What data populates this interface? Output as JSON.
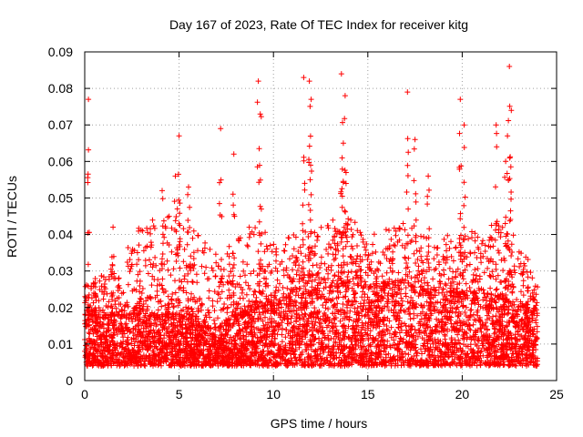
{
  "chart_data": {
    "type": "scatter",
    "title": "Day 167 of 2023, Rate Of TEC Index for receiver kitg",
    "xlabel": "GPS time / hours",
    "ylabel": "ROTI / TECUs",
    "xlim": [
      0,
      25
    ],
    "ylim": [
      0,
      0.09
    ],
    "grid": true,
    "marker": "+",
    "color": "#ff0000",
    "x_ticks": [
      0,
      5,
      10,
      15,
      20,
      25
    ],
    "x_tick_labels": [
      "0",
      "5",
      "10",
      "15",
      "20",
      "25"
    ],
    "y_ticks": [
      0,
      0.01,
      0.02,
      0.03,
      0.04,
      0.05,
      0.06,
      0.07,
      0.08,
      0.09
    ],
    "y_tick_labels": [
      "0",
      "0.01",
      "0.02",
      "0.03",
      "0.04",
      "0.05",
      "0.06",
      "0.07",
      "0.08",
      "0.09"
    ],
    "data_x_range": [
      0,
      24
    ],
    "envelope": [
      {
        "x": 0.0,
        "upper": 0.026,
        "dense_upper": 0.018
      },
      {
        "x": 1.0,
        "upper": 0.03,
        "dense_upper": 0.017
      },
      {
        "x": 2.0,
        "upper": 0.032,
        "dense_upper": 0.019
      },
      {
        "x": 2.8,
        "upper": 0.045,
        "dense_upper": 0.02
      },
      {
        "x": 4.0,
        "upper": 0.045,
        "dense_upper": 0.018
      },
      {
        "x": 5.0,
        "upper": 0.05,
        "dense_upper": 0.018
      },
      {
        "x": 6.0,
        "upper": 0.04,
        "dense_upper": 0.016
      },
      {
        "x": 7.0,
        "upper": 0.035,
        "dense_upper": 0.014
      },
      {
        "x": 8.0,
        "upper": 0.04,
        "dense_upper": 0.018
      },
      {
        "x": 9.0,
        "upper": 0.045,
        "dense_upper": 0.02
      },
      {
        "x": 10.0,
        "upper": 0.038,
        "dense_upper": 0.021
      },
      {
        "x": 11.0,
        "upper": 0.04,
        "dense_upper": 0.023
      },
      {
        "x": 12.0,
        "upper": 0.042,
        "dense_upper": 0.024
      },
      {
        "x": 13.0,
        "upper": 0.045,
        "dense_upper": 0.026
      },
      {
        "x": 14.0,
        "upper": 0.045,
        "dense_upper": 0.027
      },
      {
        "x": 15.0,
        "upper": 0.04,
        "dense_upper": 0.025
      },
      {
        "x": 16.0,
        "upper": 0.042,
        "dense_upper": 0.026
      },
      {
        "x": 17.0,
        "upper": 0.045,
        "dense_upper": 0.027
      },
      {
        "x": 18.0,
        "upper": 0.04,
        "dense_upper": 0.024
      },
      {
        "x": 19.0,
        "upper": 0.04,
        "dense_upper": 0.024
      },
      {
        "x": 20.0,
        "upper": 0.04,
        "dense_upper": 0.024
      },
      {
        "x": 21.0,
        "upper": 0.042,
        "dense_upper": 0.024
      },
      {
        "x": 22.0,
        "upper": 0.045,
        "dense_upper": 0.023
      },
      {
        "x": 23.0,
        "upper": 0.038,
        "dense_upper": 0.02
      },
      {
        "x": 24.0,
        "upper": 0.028,
        "dense_upper": 0.018
      }
    ],
    "spikes": [
      {
        "x": 0.2,
        "y": 0.077
      },
      {
        "x": 1.5,
        "y": 0.042
      },
      {
        "x": 4.1,
        "y": 0.052
      },
      {
        "x": 4.8,
        "y": 0.056
      },
      {
        "x": 5.0,
        "y": 0.067
      },
      {
        "x": 5.5,
        "y": 0.053
      },
      {
        "x": 7.2,
        "y": 0.069
      },
      {
        "x": 7.9,
        "y": 0.062
      },
      {
        "x": 9.2,
        "y": 0.082
      },
      {
        "x": 9.3,
        "y": 0.073
      },
      {
        "x": 11.6,
        "y": 0.083
      },
      {
        "x": 11.9,
        "y": 0.082
      },
      {
        "x": 12.0,
        "y": 0.077
      },
      {
        "x": 13.6,
        "y": 0.084
      },
      {
        "x": 13.8,
        "y": 0.078
      },
      {
        "x": 13.7,
        "y": 0.065
      },
      {
        "x": 17.1,
        "y": 0.079
      },
      {
        "x": 17.5,
        "y": 0.066
      },
      {
        "x": 18.2,
        "y": 0.056
      },
      {
        "x": 19.9,
        "y": 0.077
      },
      {
        "x": 20.1,
        "y": 0.07
      },
      {
        "x": 21.8,
        "y": 0.07
      },
      {
        "x": 22.5,
        "y": 0.086
      },
      {
        "x": 22.6,
        "y": 0.074
      },
      {
        "x": 22.4,
        "y": 0.067
      },
      {
        "x": 22.3,
        "y": 0.06
      }
    ]
  }
}
